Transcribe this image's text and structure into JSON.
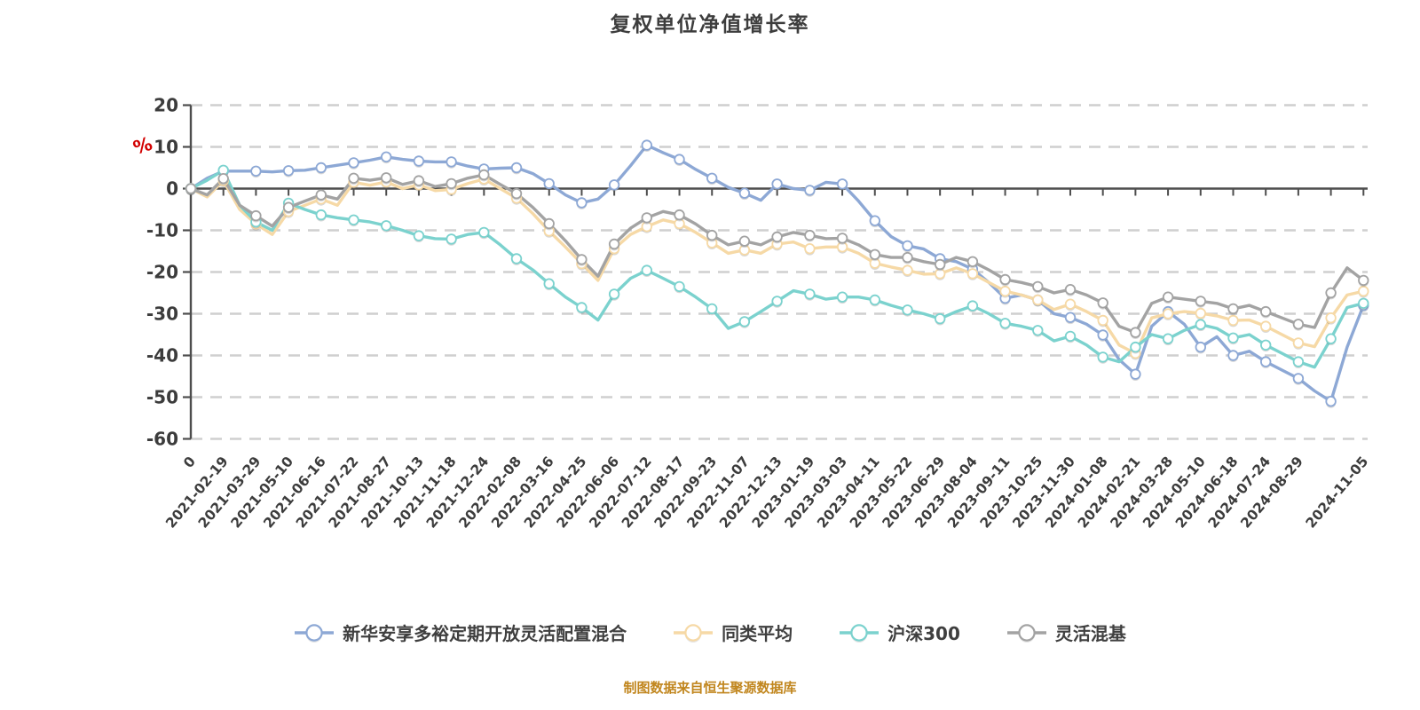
{
  "page": {
    "title": "复权单位净值增长率",
    "footer": "制图数据来自恒生聚源数据库"
  },
  "chart_data": {
    "type": "line",
    "title": "复权单位净值增长率",
    "y_axis_unit": "%",
    "y_ticks": [
      20,
      10,
      0,
      -10,
      -20,
      -30,
      -40,
      -50,
      -60
    ],
    "ylim": [
      -60,
      20
    ],
    "grid": "horizontal-dashed",
    "legend_position": "bottom",
    "x_labels": [
      "0",
      "2021-02-19",
      "2021-03-29",
      "2021-05-10",
      "2021-06-16",
      "2021-07-22",
      "2021-08-27",
      "2021-10-13",
      "2021-11-18",
      "2021-12-24",
      "2022-02-08",
      "2022-03-16",
      "2022-04-25",
      "2022-06-06",
      "2022-07-12",
      "2022-08-17",
      "2022-09-23",
      "2022-11-07",
      "2022-12-13",
      "2023-01-19",
      "2023-03-03",
      "2023-04-11",
      "2023-05-22",
      "2023-06-29",
      "2023-08-04",
      "2023-09-11",
      "2023-10-25",
      "2023-11-30",
      "2024-01-08",
      "2024-02-21",
      "2024-03-28",
      "2024-05-10",
      "2024-06-18",
      "2024-07-24",
      "2024-08-29",
      "2024-11-05"
    ],
    "x_label_tick_indices": [
      0,
      1,
      2,
      3,
      4,
      5,
      6,
      7,
      8,
      9,
      10,
      11,
      12,
      13,
      14,
      15,
      16,
      17,
      18,
      19,
      20,
      21,
      22,
      23,
      24,
      25,
      26,
      27,
      28,
      29,
      30,
      31,
      32,
      33,
      34,
      36
    ],
    "n_points": 73,
    "series": [
      {
        "id": "fund",
        "name": "新华安享多裕定期开放灵活配置混合",
        "color": "#8DA8D5",
        "values": [
          0,
          2.5,
          4.2,
          4.2,
          4.2,
          4.0,
          4.3,
          4.4,
          5.0,
          5.6,
          6.2,
          6.8,
          7.6,
          7.0,
          6.6,
          6.4,
          6.4,
          5.4,
          4.7,
          4.9,
          5.0,
          3.6,
          1.2,
          -1.5,
          -3.4,
          -2.5,
          0.9,
          5.5,
          10.4,
          8.6,
          7.0,
          4.6,
          2.5,
          0.3,
          -1.1,
          -2.8,
          1.1,
          0.0,
          -0.4,
          1.5,
          1.1,
          -3.0,
          -7.7,
          -11.5,
          -13.7,
          -14.5,
          -16.8,
          -17.5,
          -19.3,
          -22.5,
          -26.3,
          -25.5,
          -26.7,
          -30.0,
          -30.9,
          -32.5,
          -35.1,
          -41.0,
          -44.5,
          -33.0,
          -29.5,
          -32.5,
          -38.0,
          -35.5,
          -40.0,
          -39.0,
          -41.5,
          -43.5,
          -45.5,
          -48.5,
          -51.0,
          -38.0,
          -28.0
        ]
      },
      {
        "id": "peer-average",
        "name": "同类平均",
        "color": "#F6D9A6",
        "values": [
          0,
          -2.0,
          1.9,
          -5.0,
          -8.5,
          -11.0,
          -5.5,
          -4.0,
          -2.5,
          -4.0,
          1.5,
          0.8,
          1.6,
          0.0,
          0.9,
          -0.5,
          -0.2,
          1.2,
          2.3,
          0.0,
          -2.3,
          -6.0,
          -10.2,
          -14.0,
          -18.0,
          -22.0,
          -14.4,
          -11.0,
          -9.1,
          -7.5,
          -8.4,
          -10.5,
          -13.0,
          -15.5,
          -14.7,
          -15.5,
          -13.3,
          -12.8,
          -14.4,
          -14.0,
          -14.0,
          -15.5,
          -17.9,
          -18.8,
          -19.6,
          -20.5,
          -20.4,
          -19.0,
          -20.4,
          -22.5,
          -24.6,
          -25.5,
          -26.7,
          -29.0,
          -27.7,
          -29.5,
          -31.6,
          -37.5,
          -39.5,
          -31.0,
          -30.0,
          -29.5,
          -29.9,
          -30.5,
          -31.6,
          -31.5,
          -33.0,
          -35.0,
          -37.0,
          -37.9,
          -31.0,
          -25.5,
          -24.6
        ]
      },
      {
        "id": "csi300",
        "name": "沪深300",
        "color": "#7BD2CE",
        "values": [
          0,
          2.0,
          4.4,
          -4.0,
          -8.0,
          -10.0,
          -3.5,
          -5.0,
          -6.3,
          -7.0,
          -7.5,
          -8.0,
          -8.9,
          -10.0,
          -11.3,
          -12.0,
          -12.1,
          -11.0,
          -10.5,
          -13.5,
          -16.8,
          -19.5,
          -22.8,
          -26.0,
          -28.5,
          -31.5,
          -25.3,
          -21.5,
          -19.6,
          -21.5,
          -23.5,
          -26.0,
          -28.8,
          -33.5,
          -31.9,
          -29.5,
          -27.0,
          -24.5,
          -25.3,
          -26.5,
          -26.0,
          -26.0,
          -26.7,
          -28.0,
          -29.1,
          -30.0,
          -31.2,
          -29.5,
          -28.1,
          -30.0,
          -32.3,
          -33.0,
          -34.0,
          -36.5,
          -35.4,
          -37.5,
          -40.4,
          -41.5,
          -38.0,
          -35.0,
          -36.0,
          -34.0,
          -32.6,
          -33.5,
          -35.8,
          -35.0,
          -37.5,
          -39.5,
          -41.5,
          -42.8,
          -36.0,
          -28.5,
          -27.5
        ]
      },
      {
        "id": "flexible-mixed",
        "name": "灵活混基",
        "color": "#A3A3A3",
        "values": [
          0,
          -1.5,
          2.4,
          -4.0,
          -6.5,
          -9.0,
          -4.5,
          -3.0,
          -1.5,
          -2.5,
          2.5,
          2.0,
          2.6,
          1.0,
          1.9,
          0.5,
          1.2,
          2.5,
          3.3,
          1.0,
          -1.2,
          -4.5,
          -8.4,
          -12.5,
          -17.0,
          -21.0,
          -13.3,
          -9.5,
          -7.0,
          -5.5,
          -6.3,
          -8.5,
          -11.2,
          -13.5,
          -12.6,
          -13.5,
          -11.6,
          -10.5,
          -11.2,
          -12.0,
          -11.9,
          -13.5,
          -15.8,
          -16.5,
          -16.5,
          -17.5,
          -18.2,
          -16.5,
          -17.5,
          -19.5,
          -21.8,
          -22.5,
          -23.5,
          -25.0,
          -24.2,
          -25.5,
          -27.4,
          -33.0,
          -34.5,
          -27.5,
          -26.0,
          -26.5,
          -27.0,
          -27.5,
          -28.8,
          -28.0,
          -29.5,
          -31.0,
          -32.5,
          -33.3,
          -25.0,
          -19.0,
          -22.0
        ]
      }
    ]
  }
}
